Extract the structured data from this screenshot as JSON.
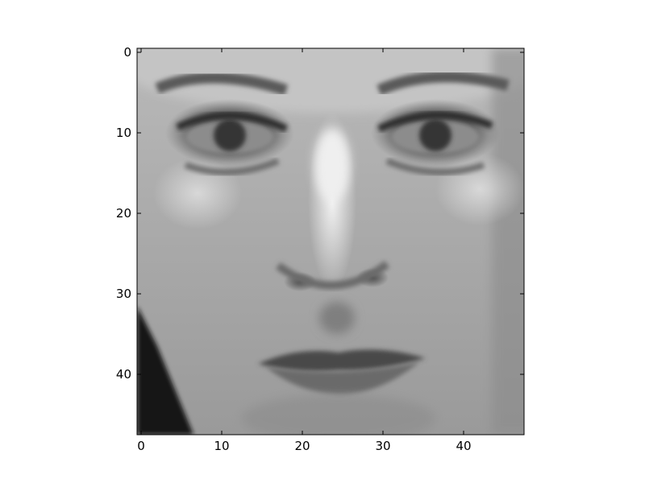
{
  "figure": {
    "image": {
      "subject": "grayscale face portrait",
      "colormap": "gray",
      "pixel_grid": [
        48,
        48
      ]
    },
    "axes": {
      "x_ticks": [
        "0",
        "10",
        "20",
        "30",
        "40"
      ],
      "y_ticks": [
        "0",
        "10",
        "20",
        "30",
        "40"
      ],
      "x_range": [
        -0.5,
        47.5
      ],
      "y_range": [
        47.5,
        -0.5
      ],
      "grid": false
    }
  }
}
